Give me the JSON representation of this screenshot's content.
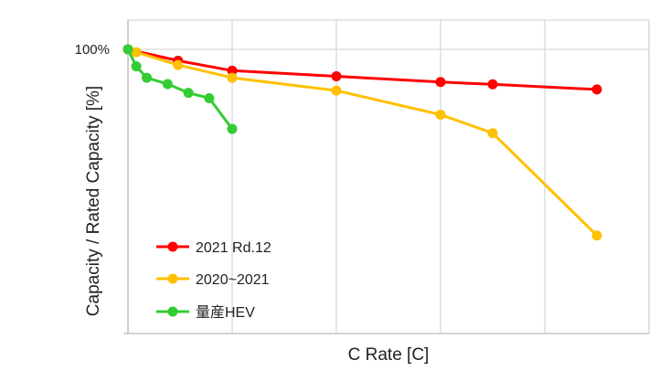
{
  "chart_data": {
    "type": "line",
    "xlabel": "C Rate [C]",
    "ylabel": "Capacity / Rated Capacity [%]",
    "y_tick_labels": [
      "100%"
    ],
    "xlim": [
      0,
      25
    ],
    "ylim": [
      0,
      1
    ],
    "grid": "vertical",
    "legend_position": "bottom-left",
    "series": [
      {
        "name": "2021 Rd.12",
        "color": "#ff0000",
        "x": [
          0,
          2.4,
          5,
          10,
          15,
          17.5,
          22.5
        ],
        "values": [
          1.0,
          0.96,
          0.925,
          0.905,
          0.885,
          0.877,
          0.859
        ]
      },
      {
        "name": "2020~2021",
        "color": "#ffc000",
        "x": [
          0,
          0.4,
          2.4,
          5,
          10,
          15,
          17.5,
          22.5
        ],
        "values": [
          1.0,
          0.99,
          0.945,
          0.9,
          0.855,
          0.77,
          0.705,
          0.345
        ]
      },
      {
        "name": "量産HEV",
        "color": "#33cc33",
        "x": [
          0,
          0.4,
          0.9,
          1.9,
          2.9,
          3.9,
          5
        ],
        "values": [
          1.0,
          0.94,
          0.9,
          0.878,
          0.847,
          0.828,
          0.72
        ]
      }
    ]
  }
}
